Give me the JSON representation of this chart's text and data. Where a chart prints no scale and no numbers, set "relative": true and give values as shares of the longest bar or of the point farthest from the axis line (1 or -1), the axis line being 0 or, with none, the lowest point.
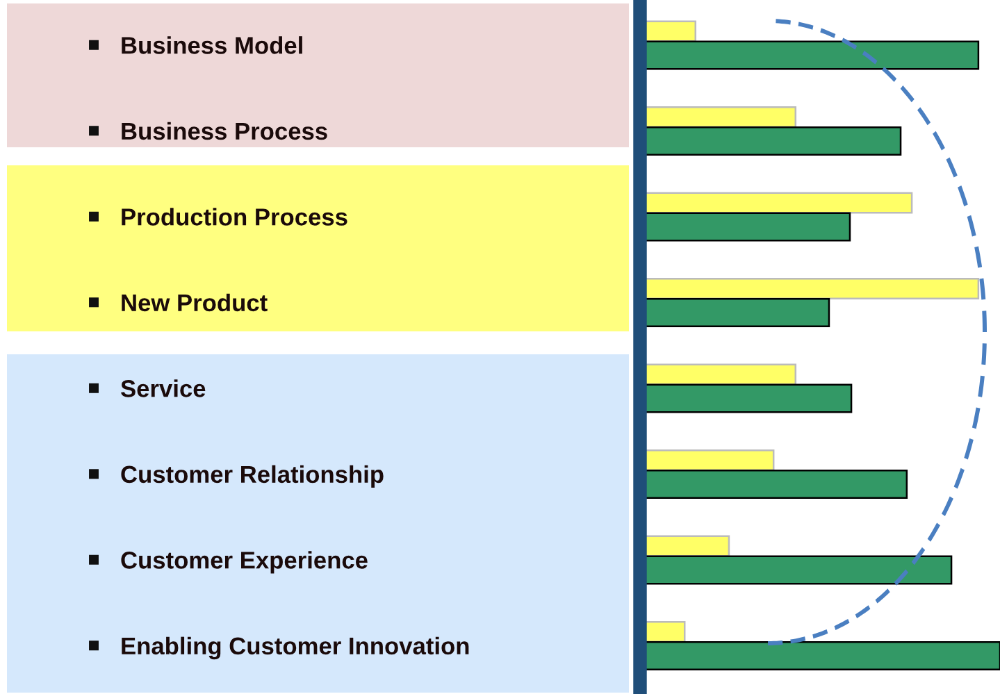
{
  "chart_data": {
    "type": "bar",
    "orientation": "horizontal",
    "relative": true,
    "grid": false,
    "categories": [
      "Business Model",
      "Business Process",
      "Production Process",
      "New Product",
      "Service",
      "Customer Relationship",
      "Customer Experience",
      "Enabling Customer Innovation"
    ],
    "series": [
      {
        "color": "#ffff66",
        "values": [
          0.154,
          0.432,
          0.755,
          0.94,
          0.432,
          0.371,
          0.247,
          0.124
        ]
      },
      {
        "color": "#339966",
        "values": [
          0.94,
          0.724,
          0.583,
          0.525,
          0.587,
          0.741,
          0.865,
          1.0
        ]
      }
    ]
  }
}
